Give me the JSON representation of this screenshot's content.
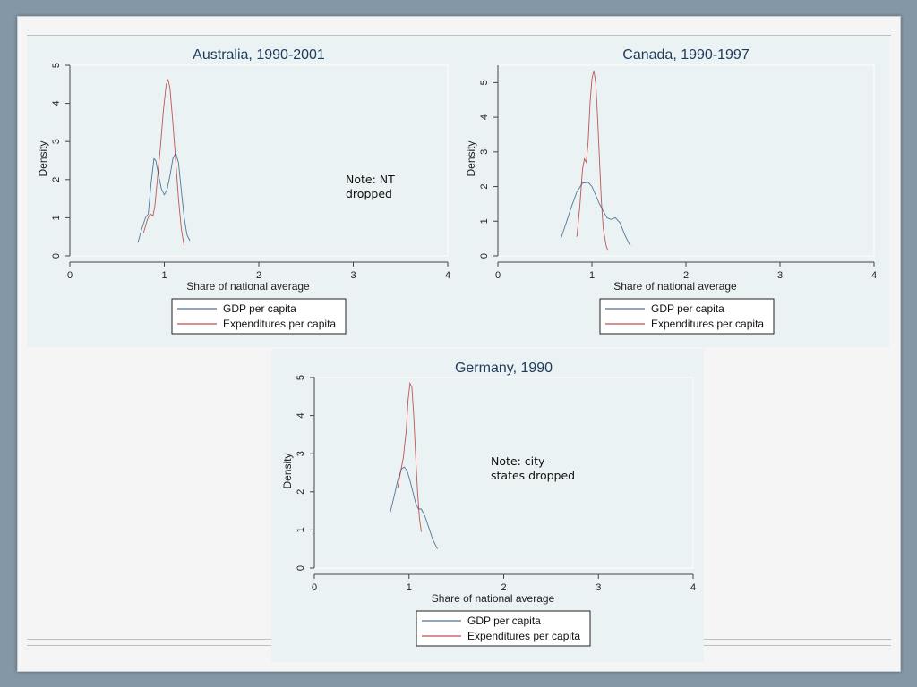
{
  "chart_data": [
    {
      "type": "line",
      "title": "Australia, 1990-2001",
      "xlabel": "Share of national average",
      "ylabel": "Density",
      "xlim": [
        0,
        4
      ],
      "ylim": [
        0,
        5
      ],
      "xticks": [
        "0",
        "1",
        "2",
        "3",
        "4"
      ],
      "yticks": [
        "0",
        "1",
        "2",
        "3",
        "4",
        "5"
      ],
      "note": [
        "Note: NT",
        "dropped"
      ],
      "series": [
        {
          "name": "GDP per capita",
          "color": "#1f4e79",
          "points": [
            [
              0.72,
              0.35
            ],
            [
              0.76,
              0.7
            ],
            [
              0.8,
              1.0
            ],
            [
              0.83,
              1.1
            ],
            [
              0.86,
              1.9
            ],
            [
              0.89,
              2.55
            ],
            [
              0.91,
              2.5
            ],
            [
              0.94,
              2.1
            ],
            [
              0.97,
              1.75
            ],
            [
              1.0,
              1.6
            ],
            [
              1.03,
              1.75
            ],
            [
              1.06,
              2.1
            ],
            [
              1.09,
              2.55
            ],
            [
              1.12,
              2.7
            ],
            [
              1.15,
              2.45
            ],
            [
              1.18,
              1.7
            ],
            [
              1.21,
              1.0
            ],
            [
              1.24,
              0.55
            ],
            [
              1.27,
              0.4
            ]
          ]
        },
        {
          "name": "Expenditures per capita",
          "color": "#b22222",
          "points": [
            [
              0.78,
              0.6
            ],
            [
              0.82,
              0.95
            ],
            [
              0.85,
              1.1
            ],
            [
              0.88,
              1.05
            ],
            [
              0.9,
              1.3
            ],
            [
              0.93,
              2.1
            ],
            [
              0.96,
              2.9
            ],
            [
              0.99,
              3.8
            ],
            [
              1.02,
              4.5
            ],
            [
              1.04,
              4.62
            ],
            [
              1.06,
              4.4
            ],
            [
              1.09,
              3.5
            ],
            [
              1.12,
              2.5
            ],
            [
              1.15,
              1.5
            ],
            [
              1.18,
              0.7
            ],
            [
              1.21,
              0.25
            ]
          ]
        }
      ]
    },
    {
      "type": "line",
      "title": "Canada, 1990-1997",
      "xlabel": "Share of national average",
      "ylabel": "Density",
      "xlim": [
        0,
        4
      ],
      "ylim": [
        0,
        5.5
      ],
      "xticks": [
        "0",
        "1",
        "2",
        "3",
        "4"
      ],
      "yticks": [
        "0",
        "1",
        "2",
        "3",
        "4",
        "5"
      ],
      "note": [],
      "series": [
        {
          "name": "GDP per capita",
          "color": "#1f4e79",
          "points": [
            [
              0.67,
              0.5
            ],
            [
              0.72,
              0.9
            ],
            [
              0.78,
              1.4
            ],
            [
              0.84,
              1.85
            ],
            [
              0.9,
              2.1
            ],
            [
              0.96,
              2.12
            ],
            [
              1.0,
              2.0
            ],
            [
              1.04,
              1.75
            ],
            [
              1.08,
              1.5
            ],
            [
              1.12,
              1.3
            ],
            [
              1.16,
              1.1
            ],
            [
              1.2,
              1.05
            ],
            [
              1.25,
              1.1
            ],
            [
              1.3,
              0.95
            ],
            [
              1.35,
              0.6
            ],
            [
              1.41,
              0.28
            ]
          ]
        },
        {
          "name": "Expenditures per capita",
          "color": "#b22222",
          "points": [
            [
              0.84,
              0.55
            ],
            [
              0.87,
              1.4
            ],
            [
              0.9,
              2.5
            ],
            [
              0.92,
              2.8
            ],
            [
              0.94,
              2.7
            ],
            [
              0.96,
              3.3
            ],
            [
              0.98,
              4.4
            ],
            [
              1.0,
              5.1
            ],
            [
              1.02,
              5.35
            ],
            [
              1.04,
              5.0
            ],
            [
              1.06,
              4.0
            ],
            [
              1.08,
              2.8
            ],
            [
              1.1,
              1.6
            ],
            [
              1.12,
              0.8
            ],
            [
              1.15,
              0.3
            ],
            [
              1.17,
              0.15
            ]
          ]
        }
      ]
    },
    {
      "type": "line",
      "title": "Germany, 1990",
      "xlabel": "Share of national average",
      "ylabel": "Density",
      "xlim": [
        0,
        4
      ],
      "ylim": [
        0,
        5
      ],
      "xticks": [
        "0",
        "1",
        "2",
        "3",
        "4"
      ],
      "yticks": [
        "0",
        "1",
        "2",
        "3",
        "4",
        "5"
      ],
      "note": [
        "Note: city-",
        "states dropped"
      ],
      "series": [
        {
          "name": "GDP per capita",
          "color": "#1f4e79",
          "points": [
            [
              0.8,
              1.45
            ],
            [
              0.84,
              1.85
            ],
            [
              0.88,
              2.3
            ],
            [
              0.92,
              2.6
            ],
            [
              0.95,
              2.65
            ],
            [
              0.98,
              2.55
            ],
            [
              1.01,
              2.3
            ],
            [
              1.04,
              2.0
            ],
            [
              1.07,
              1.7
            ],
            [
              1.1,
              1.55
            ],
            [
              1.13,
              1.55
            ],
            [
              1.17,
              1.35
            ],
            [
              1.21,
              1.05
            ],
            [
              1.25,
              0.75
            ],
            [
              1.3,
              0.5
            ]
          ]
        },
        {
          "name": "Expenditures per capita",
          "color": "#b22222",
          "points": [
            [
              0.88,
              2.1
            ],
            [
              0.91,
              2.5
            ],
            [
              0.94,
              2.9
            ],
            [
              0.97,
              3.6
            ],
            [
              0.99,
              4.4
            ],
            [
              1.01,
              4.85
            ],
            [
              1.03,
              4.75
            ],
            [
              1.05,
              4.0
            ],
            [
              1.07,
              2.9
            ],
            [
              1.09,
              2.0
            ],
            [
              1.11,
              1.3
            ],
            [
              1.13,
              0.95
            ]
          ]
        }
      ]
    }
  ]
}
